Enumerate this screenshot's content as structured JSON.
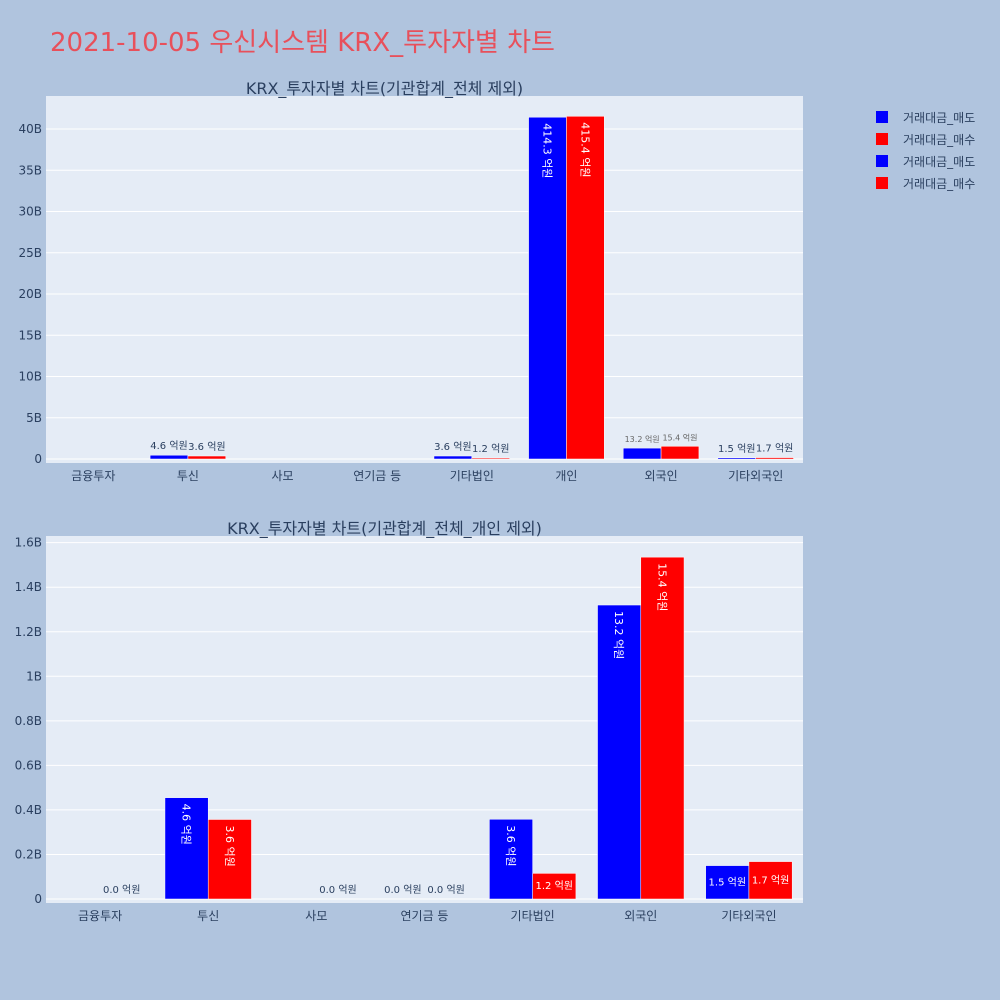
{
  "page": {
    "title": "2021-10-05 우신시스템 KRX_투자자별 차트"
  },
  "colors": {
    "sell": "#0000ff",
    "buy": "#ff0000",
    "plot_bg": "#e5ecf6",
    "page_bg": "#b0c4de",
    "title": "#e8505b",
    "text": "#2a3f5f"
  },
  "legend": [
    {
      "label": "거래대금_매도",
      "color": "#0000ff"
    },
    {
      "label": "거래대금_매수",
      "color": "#ff0000"
    },
    {
      "label": "거래대금_매도",
      "color": "#0000ff"
    },
    {
      "label": "거래대금_매수",
      "color": "#ff0000"
    }
  ],
  "chart_data": [
    {
      "type": "bar",
      "title": "KRX_투자자별 차트(기관합계_전체 제외)",
      "categories": [
        "금융투자",
        "투신",
        "사모",
        "연기금 등",
        "기타법인",
        "개인",
        "외국인",
        "기타외국인"
      ],
      "series": [
        {
          "name": "거래대금_매도",
          "color": "#0000ff",
          "values": [
            0,
            460000000,
            0,
            0,
            360000000,
            41430000000,
            1320000000,
            150000000
          ],
          "labels": [
            "",
            "4.6 억원",
            "",
            "",
            "3.6 억원",
            "414.3 억원",
            "13.2 억원",
            "1.5 억원"
          ]
        },
        {
          "name": "거래대금_매수",
          "color": "#ff0000",
          "values": [
            0,
            360000000,
            0,
            0,
            120000000,
            41540000000,
            1540000000,
            170000000
          ],
          "labels": [
            "",
            "3.6 억원",
            "",
            "",
            "1.2 억원",
            "415.4 억원",
            "15.4 억원",
            "1.7 억원"
          ]
        }
      ],
      "ylim": [
        0,
        44000000000
      ],
      "yticks": [
        0,
        5000000000,
        10000000000,
        15000000000,
        20000000000,
        25000000000,
        30000000000,
        35000000000,
        40000000000
      ],
      "ytick_labels": [
        "0",
        "5B",
        "10B",
        "15B",
        "20B",
        "25B",
        "30B",
        "35B",
        "40B"
      ],
      "grid": true
    },
    {
      "type": "bar",
      "title": "KRX_투자자별 차트(기관합계_전체_개인 제외)",
      "categories": [
        "금융투자",
        "투신",
        "사모",
        "연기금 등",
        "기타법인",
        "외국인",
        "기타외국인"
      ],
      "series": [
        {
          "name": "거래대금_매도",
          "color": "#0000ff",
          "values": [
            0,
            455000000,
            0,
            0,
            358000000,
            1320000000,
            150000000
          ],
          "labels": [
            "",
            "4.6 억원",
            "",
            "",
            "3.6 억원",
            "13.2 억원",
            "1.5 억원"
          ]
        },
        {
          "name": "거래대금_매수",
          "color": "#ff0000",
          "values": [
            0,
            357000000,
            0,
            0,
            115000000,
            1535000000,
            168000000
          ],
          "labels": [
            "0.0 억원",
            "3.6 억원",
            "0.0 억원",
            "0.0 억원",
            "1.2 억원",
            "15.4 억원",
            "1.7 억원"
          ],
          "extra_labels": [
            "",
            "",
            "",
            "0.0 억원",
            "",
            "",
            ""
          ]
        }
      ],
      "ylim": [
        0,
        1630000000
      ],
      "yticks": [
        0,
        200000000,
        400000000,
        600000000,
        800000000,
        1000000000,
        1200000000,
        1400000000,
        1600000000
      ],
      "ytick_labels": [
        "0",
        "0.2B",
        "0.4B",
        "0.6B",
        "0.8B",
        "1B",
        "1.2B",
        "1.4B",
        "1.6B"
      ],
      "grid": true
    }
  ]
}
